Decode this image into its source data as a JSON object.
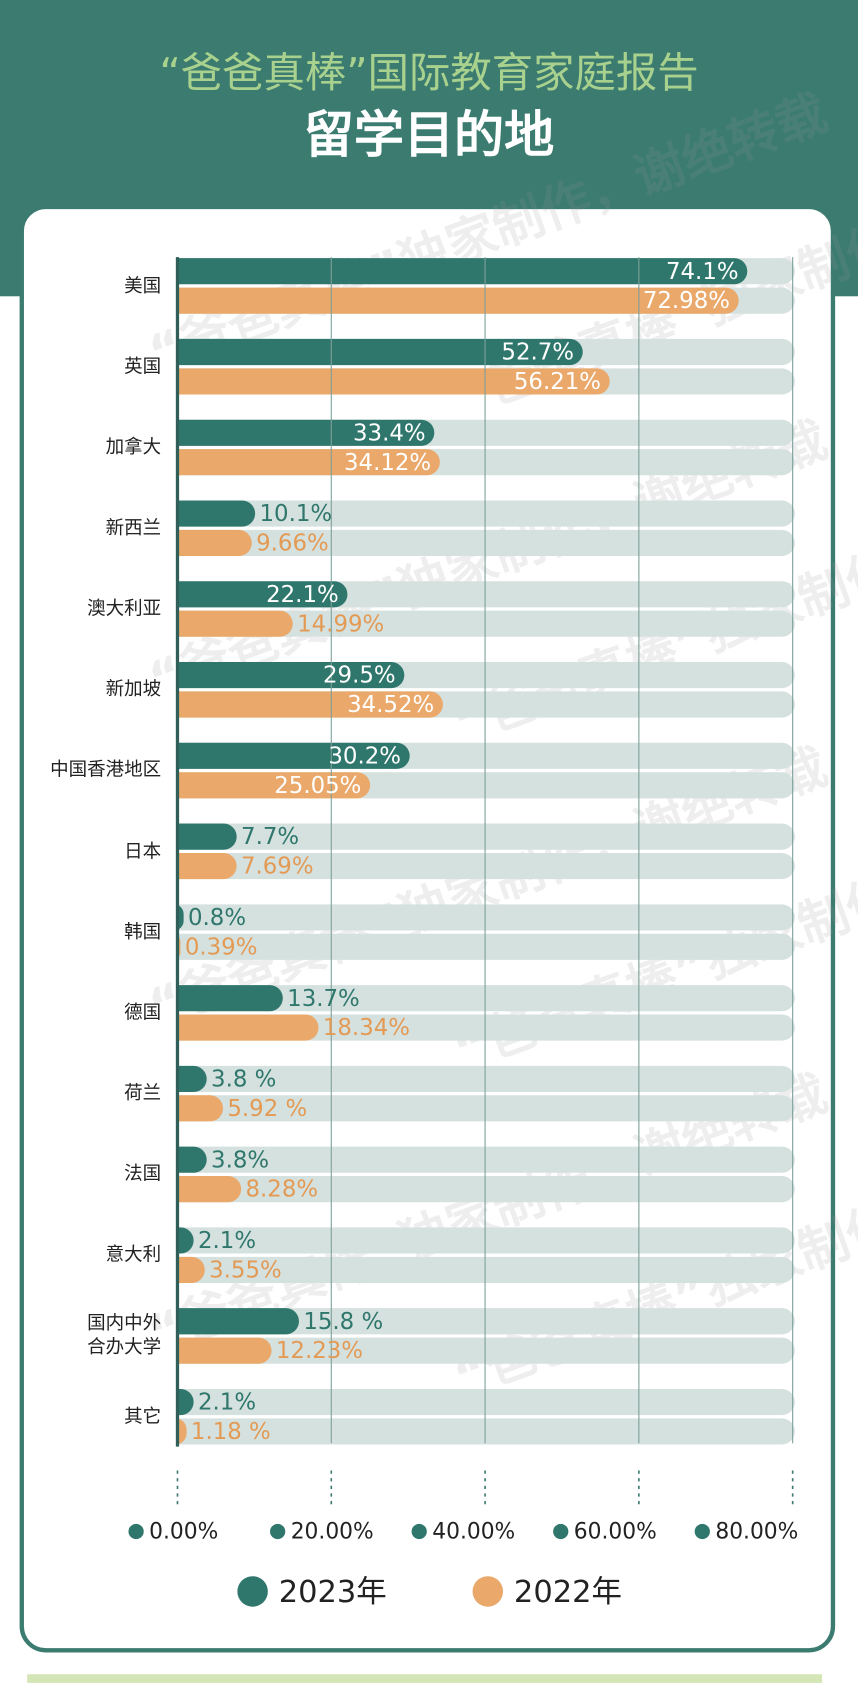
{
  "chart_data": {
    "type": "bar",
    "orientation": "horizontal",
    "supertitle": "“爸爸真棒”国际教育家庭报告",
    "title": "留学目的地",
    "watermark": "“爸爸真棒”独家制作，谢绝转载",
    "categories": [
      "美国",
      "英国",
      "加拿大",
      "新西兰",
      "澳大利亚",
      "新加坡",
      "中国香港地区",
      "日本",
      "韩国",
      "德国",
      "荷兰",
      "法国",
      "意大利",
      "国内中外\n合办大学",
      "其它"
    ],
    "series": [
      {
        "name": "2023年",
        "color": "#2f776c",
        "values": [
          74.1,
          52.7,
          33.4,
          10.1,
          22.1,
          29.5,
          30.2,
          7.7,
          0.8,
          13.7,
          3.8,
          3.8,
          2.1,
          15.8,
          2.1
        ],
        "value_labels": [
          "74.1%",
          "52.7%",
          "33.4%",
          "10.1%",
          "22.1%",
          "29.5%",
          "30.2%",
          "7.7%",
          "0.8%",
          "13.7%",
          "3.8 %",
          "3.8%",
          "2.1%",
          "15.8 %",
          "2.1%"
        ]
      },
      {
        "name": "2022年",
        "color": "#eaa86a",
        "values": [
          72.98,
          56.21,
          34.12,
          9.66,
          14.99,
          34.52,
          25.05,
          7.69,
          0.39,
          18.34,
          5.92,
          8.28,
          3.55,
          12.23,
          1.18
        ],
        "value_labels": [
          "72.98%",
          "56.21%",
          "34.12%",
          "9.66%",
          "14.99%",
          "34.52%",
          "25.05%",
          "7.69%",
          "0.39%",
          "18.34%",
          "5.92 %",
          "8.28%",
          "3.55%",
          "12.23%",
          "1.18 %"
        ]
      }
    ],
    "xlim": [
      0,
      80
    ],
    "xticks": [
      {
        "value": 0,
        "label": "0.00%"
      },
      {
        "value": 20,
        "label": "20.00%"
      },
      {
        "value": 40,
        "label": "40.00%"
      },
      {
        "value": 60,
        "label": "60.00%"
      },
      {
        "value": 80,
        "label": "80.00%"
      }
    ],
    "grid": true,
    "legend": "bottom"
  }
}
